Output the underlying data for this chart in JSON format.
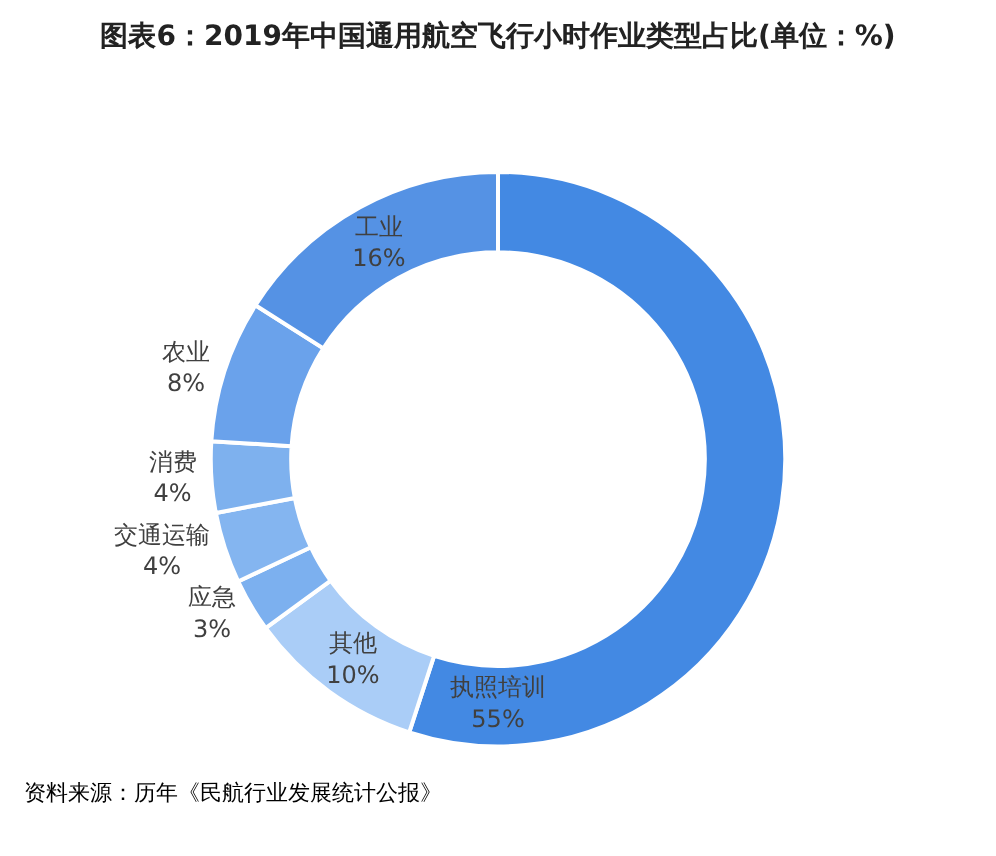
{
  "chart_data": {
    "type": "donut",
    "title": "图表6：2019年中国通用航空飞行小时作业类型占比(单位：%)",
    "categories": [
      "执照培训",
      "其他",
      "应急",
      "交通运输",
      "消费",
      "农业",
      "工业"
    ],
    "values": [
      55,
      10,
      3,
      4,
      4,
      8,
      16
    ],
    "value_labels": [
      "55%",
      "10%",
      "3%",
      "4%",
      "4%",
      "8%",
      "16%"
    ],
    "colors": [
      "#4389e3",
      "#aacdf7",
      "#7cb0ef",
      "#84b5f0",
      "#7eb1ee",
      "#6aa2eb",
      "#5592e4"
    ],
    "annotations": [
      "资料来源：历年《民航行业发展统计公报》"
    ]
  }
}
